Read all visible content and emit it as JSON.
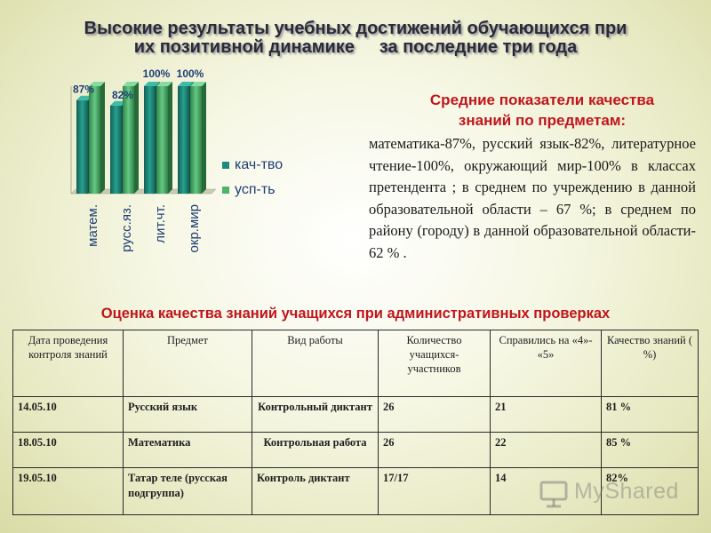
{
  "title": {
    "line1": "Высокие результаты учебных достижений обучающихся при",
    "line2": "их позитивной динамике     за последние три года"
  },
  "chart_data": {
    "type": "bar",
    "categories": [
      "матем.",
      "русс.яз.",
      "лит.чт.",
      "окр.мир"
    ],
    "series": [
      {
        "name": "кач-тво",
        "values": [
          87,
          82,
          100,
          100
        ],
        "color": "#1f8a7b"
      },
      {
        "name": "усп-ть",
        "values": [
          100,
          100,
          100,
          100
        ],
        "color": "#4fb36b"
      }
    ],
    "data_labels": [
      "87%",
      "82%",
      "100%",
      "100%"
    ],
    "ylim": [
      0,
      100
    ],
    "legend_position": "right",
    "style": "3d-bars"
  },
  "side_panel": {
    "heading_line1": "Средние показатели качества",
    "heading_line2": "знаний по предметам:",
    "text": "математика-87%, русский язык-82%, литературное чтение-100%, окружающий мир-100% в классах претендента  ; в среднем по учреждению в данной образовательной области – 67 %; в среднем по району (городу) в данной образовательной области- 62 % ."
  },
  "table_heading": "Оценка качества знаний учащихся при административных проверках",
  "table": {
    "headers": [
      "Дата проведения контроля знаний",
      "Предмет",
      "Вид работы",
      "Количество учащихся-участников",
      "Справились на «4»- «5»",
      "Качество знаний ( %)"
    ],
    "rows": [
      [
        "14.05.10",
        "Русский язык",
        "Контрольный диктант",
        "26",
        "21",
        "81 %"
      ],
      [
        "18.05.10",
        "Математика",
        "Контрольная работа",
        "26",
        "22",
        "85 %"
      ],
      [
        "19.05.10",
        "Татар теле (русская подгруппа)",
        "Контроль диктант",
        "17/17",
        "14",
        "82%"
      ]
    ]
  },
  "watermark": "MyShared"
}
